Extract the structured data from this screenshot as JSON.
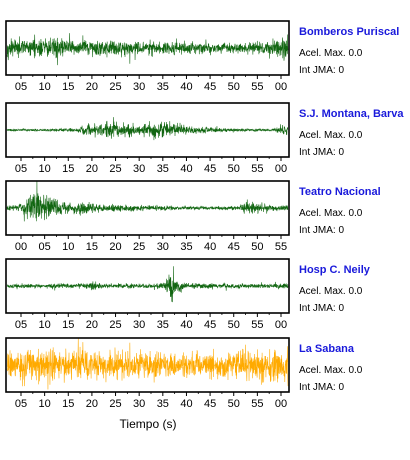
{
  "chart_data": {
    "type": "line",
    "xlabel": "Tiempo (s)",
    "ylabel": "",
    "grid": false,
    "panels": [
      {
        "station": "Bomberos Puriscal",
        "accel_label": "Acel. Max.",
        "accel_value": "0.0",
        "intensity_label": "Int JMA:",
        "intensity_value": "0",
        "color": "#116611",
        "x_tick_labels": [
          "05",
          "10",
          "15",
          "20",
          "25",
          "30",
          "35",
          "40",
          "45",
          "50",
          "55",
          "00"
        ],
        "envelope": [
          [
            0,
            0.45
          ],
          [
            5,
            0.5
          ],
          [
            10,
            0.55
          ],
          [
            15,
            0.4
          ],
          [
            20,
            0.45
          ],
          [
            25,
            0.4
          ],
          [
            30,
            0.35
          ],
          [
            35,
            0.38
          ],
          [
            40,
            0.32
          ],
          [
            45,
            0.3
          ],
          [
            50,
            0.28
          ],
          [
            55,
            0.3
          ],
          [
            58,
            0.45
          ],
          [
            61,
            0.7
          ]
        ]
      },
      {
        "station": "S.J. Montana, Barva",
        "accel_label": "Acel. Max.",
        "accel_value": "0.0",
        "intensity_label": "Int JMA:",
        "intensity_value": "0",
        "color": "#116611",
        "x_tick_labels": [
          "05",
          "10",
          "15",
          "20",
          "25",
          "30",
          "35",
          "40",
          "45",
          "50",
          "55",
          "00"
        ],
        "envelope": [
          [
            0,
            0.05
          ],
          [
            10,
            0.07
          ],
          [
            15,
            0.12
          ],
          [
            18,
            0.35
          ],
          [
            22,
            0.45
          ],
          [
            26,
            0.35
          ],
          [
            30,
            0.3
          ],
          [
            33,
            0.5
          ],
          [
            36,
            0.35
          ],
          [
            40,
            0.2
          ],
          [
            45,
            0.12
          ],
          [
            50,
            0.08
          ],
          [
            55,
            0.06
          ],
          [
            58,
            0.08
          ],
          [
            61,
            0.35
          ]
        ]
      },
      {
        "station": "Teatro Nacional",
        "accel_label": "Acel. Max.",
        "accel_value": "0.0",
        "intensity_label": "Int JMA:",
        "intensity_value": "0",
        "color": "#116611",
        "x_tick_labels": [
          "00",
          "05",
          "10",
          "15",
          "20",
          "25",
          "30",
          "35",
          "40",
          "45",
          "50",
          "55"
        ],
        "envelope": [
          [
            0,
            0.15
          ],
          [
            3,
            0.25
          ],
          [
            5,
            0.75
          ],
          [
            7,
            0.95
          ],
          [
            9,
            0.7
          ],
          [
            12,
            0.3
          ],
          [
            15,
            0.25
          ],
          [
            16,
            0.45
          ],
          [
            18,
            0.25
          ],
          [
            22,
            0.2
          ],
          [
            30,
            0.15
          ],
          [
            40,
            0.1
          ],
          [
            50,
            0.1
          ],
          [
            53,
            0.4
          ],
          [
            55,
            0.25
          ],
          [
            57,
            0.15
          ]
        ]
      },
      {
        "station": "Hosp C. Neily",
        "accel_label": "Acel. Max.",
        "accel_value": "0.0",
        "intensity_label": "Int JMA:",
        "intensity_value": "0",
        "color": "#116611",
        "x_tick_labels": [
          "05",
          "10",
          "15",
          "20",
          "25",
          "30",
          "35",
          "40",
          "45",
          "50",
          "55",
          "00"
        ],
        "envelope": [
          [
            0,
            0.12
          ],
          [
            10,
            0.12
          ],
          [
            18,
            0.14
          ],
          [
            19,
            0.3
          ],
          [
            20,
            0.14
          ],
          [
            30,
            0.12
          ],
          [
            34,
            0.15
          ],
          [
            35,
            0.55
          ],
          [
            36,
            0.95
          ],
          [
            37,
            0.4
          ],
          [
            39,
            0.15
          ],
          [
            50,
            0.12
          ],
          [
            58,
            0.12
          ],
          [
            61,
            0.15
          ]
        ]
      },
      {
        "station": "La Sabana",
        "accel_label": "Acel. Max.",
        "accel_value": "0.0",
        "intensity_label": "Int JMA:",
        "intensity_value": "0",
        "color": "#ffaa00",
        "x_tick_labels": [
          "05",
          "10",
          "15",
          "20",
          "25",
          "30",
          "35",
          "40",
          "45",
          "50",
          "55",
          "00"
        ],
        "envelope": [
          [
            0,
            0.75
          ],
          [
            5,
            0.8
          ],
          [
            10,
            0.85
          ],
          [
            15,
            0.7
          ],
          [
            20,
            0.75
          ],
          [
            25,
            0.7
          ],
          [
            30,
            0.7
          ],
          [
            35,
            0.65
          ],
          [
            40,
            0.7
          ],
          [
            45,
            0.75
          ],
          [
            50,
            0.8
          ],
          [
            55,
            0.9
          ],
          [
            61,
            0.95
          ]
        ]
      }
    ]
  }
}
